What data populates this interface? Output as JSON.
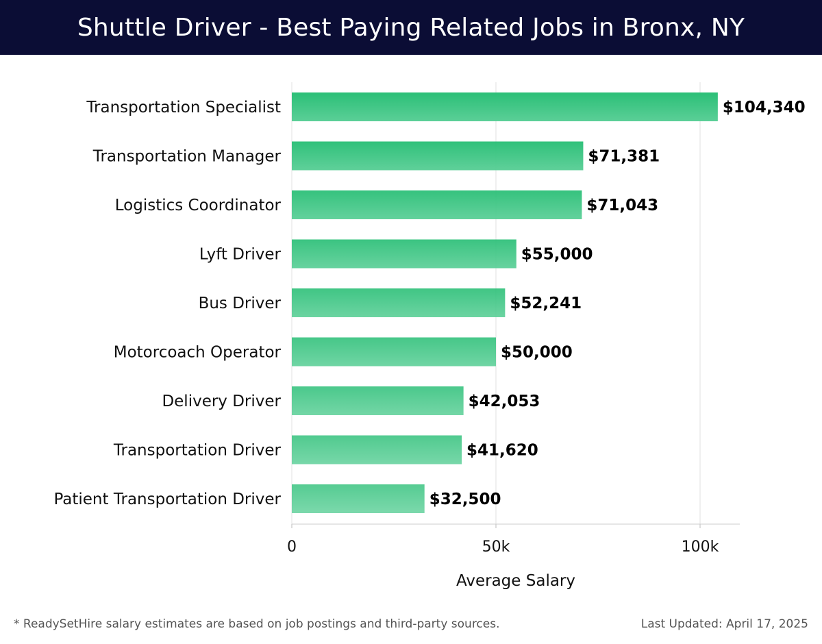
{
  "header": {
    "title": "Shuttle Driver - Best Paying Related Jobs in Bronx, NY"
  },
  "footer": {
    "note": "* ReadySetHire salary estimates are based on job postings and third-party sources.",
    "updated": "Last Updated: April 17, 2025"
  },
  "colors": {
    "header_bg": "#0b0d35",
    "bar_top": "#2bbf77",
    "bar_bottom": "#5bcf97",
    "grid": "#e2e2e2",
    "axis": "#cccccc"
  },
  "chart_data": {
    "type": "bar",
    "orientation": "horizontal",
    "categories": [
      "Transportation Specialist",
      "Transportation Manager",
      "Logistics Coordinator",
      "Lyft Driver",
      "Bus Driver",
      "Motorcoach Operator",
      "Delivery Driver",
      "Transportation Driver",
      "Patient Transportation Driver"
    ],
    "values": [
      104340,
      71381,
      71043,
      55000,
      52241,
      50000,
      42053,
      41620,
      32500
    ],
    "value_labels": [
      "$104,340",
      "$71,381",
      "$71,043",
      "$55,000",
      "$52,241",
      "$50,000",
      "$42,053",
      "$41,620",
      "$32,500"
    ],
    "xlabel": "Average Salary",
    "ylabel": "",
    "xlim": [
      0,
      110000
    ],
    "xticks": [
      0,
      50000,
      100000
    ],
    "xtick_labels": [
      "0",
      "50k",
      "100k"
    ],
    "grid": true
  }
}
